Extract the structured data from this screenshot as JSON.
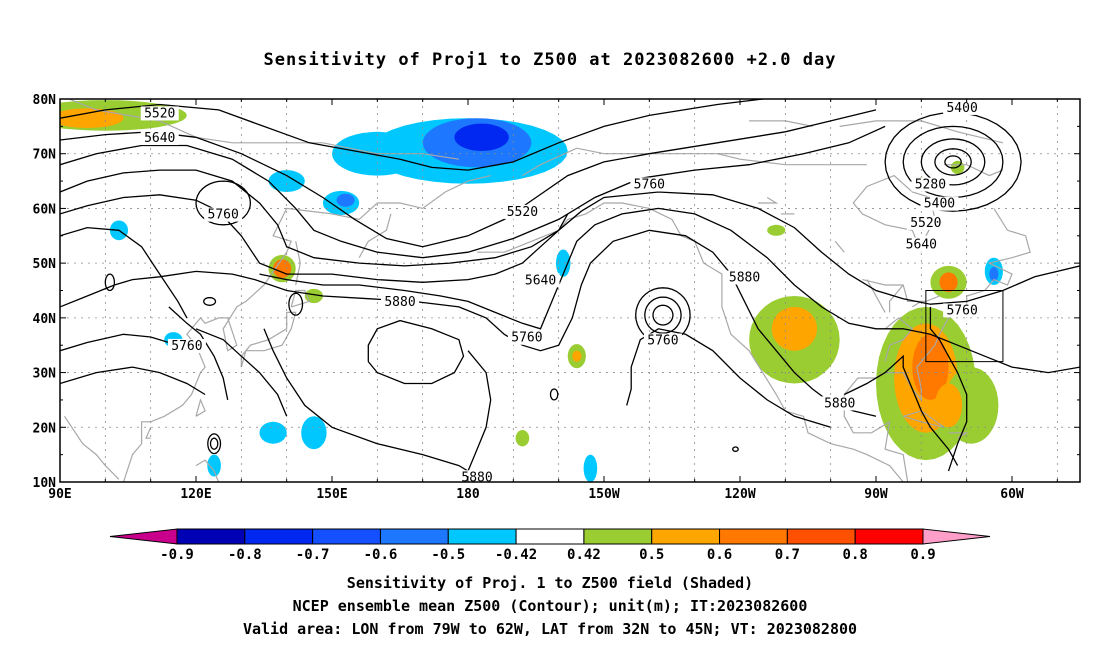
{
  "title": "Sensitivity of Proj1 to Z500 at 2023082600 +2.0 day",
  "lat_ticks": [
    "80N",
    "70N",
    "60N",
    "50N",
    "40N",
    "30N",
    "20N",
    "10N"
  ],
  "lon_ticks": [
    "90E",
    "120E",
    "150E",
    "180",
    "150W",
    "120W",
    "90W",
    "60W"
  ],
  "contour_labels": [
    {
      "text": "5520",
      "lon": 112,
      "lat": 77
    },
    {
      "text": "5640",
      "lon": 112,
      "lat": 72.5
    },
    {
      "text": "5760",
      "lon": 126,
      "lat": 58.5
    },
    {
      "text": "5520",
      "lon": -168,
      "lat": 59
    },
    {
      "text": "5760",
      "lon": -140,
      "lat": 64
    },
    {
      "text": "5400",
      "lon": -71,
      "lat": 78
    },
    {
      "text": "5280",
      "lon": -78,
      "lat": 64
    },
    {
      "text": "5400",
      "lon": -76,
      "lat": 60.5
    },
    {
      "text": "5520",
      "lon": -79,
      "lat": 57
    },
    {
      "text": "5640",
      "lon": -80,
      "lat": 53
    },
    {
      "text": "5640",
      "lon": -164,
      "lat": 46.5
    },
    {
      "text": "5880",
      "lon": -119,
      "lat": 47
    },
    {
      "text": "5880",
      "lon": 165,
      "lat": 42.5
    },
    {
      "text": "5760",
      "lon": -71,
      "lat": 41
    },
    {
      "text": "5760",
      "lon": -167,
      "lat": 36
    },
    {
      "text": "5760",
      "lon": -137,
      "lat": 35.5
    },
    {
      "text": "5760",
      "lon": 118,
      "lat": 34.5
    },
    {
      "text": "5880",
      "lon": -98,
      "lat": 24
    },
    {
      "text": "5880",
      "lon": -178,
      "lat": 10.5
    }
  ],
  "colorbar": {
    "labels": [
      "-0.9",
      "-0.8",
      "-0.7",
      "-0.6",
      "-0.5",
      "-0.42",
      "0.42",
      "0.5",
      "0.6",
      "0.7",
      "0.8",
      "0.9"
    ],
    "colors": [
      "#0000b4",
      "#0028f0",
      "#1450ff",
      "#1e78ff",
      "#00c8ff",
      "#ffffff",
      "#9acd32",
      "#ffa500",
      "#ff7800",
      "#ff5000",
      "#ff0000"
    ],
    "low_color": "#c8008c",
    "high_color": "#ff9ec8"
  },
  "captions": [
    "Sensitivity of Proj. 1 to Z500 field (Shaded)",
    "NCEP ensemble mean Z500 (Contour); unit(m); IT:2023082600",
    "Valid area: LON from 79W to 62W, LAT from 32N to 45N; VT: 2023082800"
  ],
  "valid_area": {
    "lon_min": -79,
    "lon_max": -62,
    "lat_min": 32,
    "lat_max": 45
  }
}
